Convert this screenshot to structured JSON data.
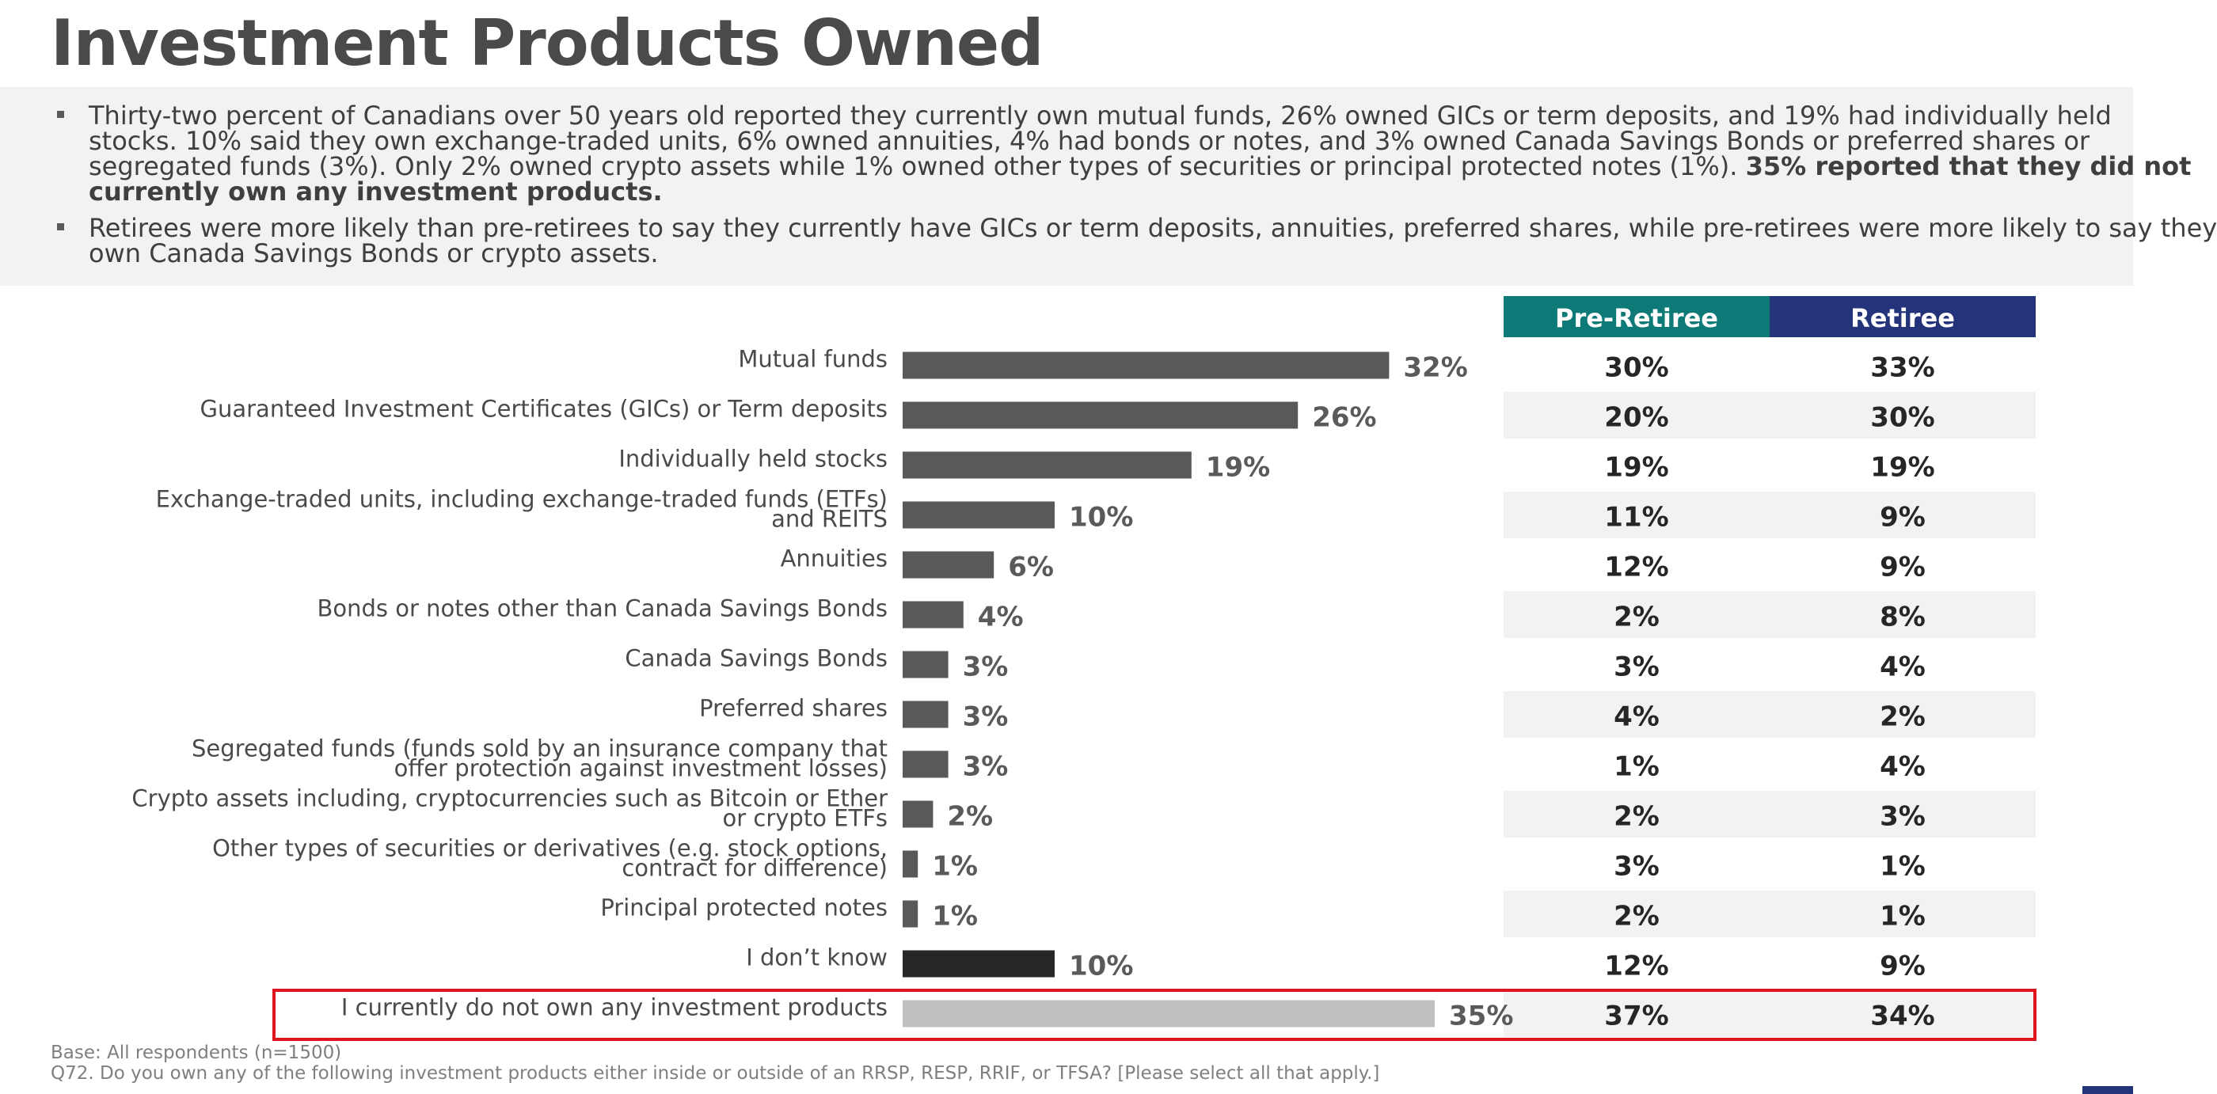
{
  "title": "Investment Products Owned",
  "summary": {
    "bullet1_lines": [
      "Thirty-two percent of Canadians over 50 years old reported they currently own mutual funds, 26% owned GICs or term deposits, and 19% had individually held",
      "stocks. 10% said they own exchange-traded units, 6% owned annuities, 4% had bonds or notes, and 3% owned Canada Savings Bonds or preferred shares or",
      "segregated funds (3%). Only 2% owned crypto assets while 1% owned other types of securities or principal protected notes (1%). "
    ],
    "bullet1_bold": [
      "35% reported that they did not",
      "currently own any investment products."
    ],
    "bullet2_lines": [
      "Retirees were more likely than pre-retirees to say they currently have GICs or term deposits, annuities, preferred shares, while pre-retirees were more likely to say they",
      "own Canada Savings Bonds or crypto assets."
    ]
  },
  "chart_data": {
    "type": "bar",
    "orientation": "horizontal",
    "xlim": [
      0,
      40
    ],
    "categories": [
      [
        "Mutual funds"
      ],
      [
        "Guaranteed Investment Certificates (GICs) or Term deposits"
      ],
      [
        "Individually held stocks"
      ],
      [
        "Exchange-traded units, including exchange-traded funds (ETFs)",
        "and REITS"
      ],
      [
        "Annuities"
      ],
      [
        "Bonds or notes other than Canada Savings Bonds"
      ],
      [
        "Canada Savings Bonds"
      ],
      [
        "Preferred shares"
      ],
      [
        "Segregated funds (funds sold by an insurance company that",
        "offer protection against investment losses)"
      ],
      [
        "Crypto assets including, cryptocurrencies such as Bitcoin or Ether",
        "or crypto ETFs"
      ],
      [
        "Other types of securities or derivatives (e.g. stock options,",
        "contract for difference)"
      ],
      [
        "Principal protected notes"
      ],
      [
        "I don’t know"
      ],
      [
        "I currently do not own any investment products"
      ]
    ],
    "values": [
      32,
      26,
      19,
      10,
      6,
      4,
      3,
      3,
      3,
      2,
      1,
      1,
      10,
      35
    ],
    "value_labels": [
      "32%",
      "26%",
      "19%",
      "10%",
      "6%",
      "4%",
      "3%",
      "3%",
      "3%",
      "2%",
      "1%",
      "1%",
      "10%",
      "35%"
    ],
    "bar_colors": [
      "#595959",
      "#595959",
      "#595959",
      "#595959",
      "#595959",
      "#595959",
      "#595959",
      "#595959",
      "#595959",
      "#595959",
      "#595959",
      "#595959",
      "#262626",
      "#bfbfbf"
    ],
    "highlight_row": 13,
    "table": {
      "columns": [
        {
          "name": "Pre-Retiree",
          "color": "#0e7a77"
        },
        {
          "name": "Retiree",
          "color": "#24347a"
        }
      ],
      "rows": [
        [
          "30%",
          "33%"
        ],
        [
          "20%",
          "30%"
        ],
        [
          "19%",
          "19%"
        ],
        [
          "11%",
          "9%"
        ],
        [
          "12%",
          "9%"
        ],
        [
          "2%",
          "8%"
        ],
        [
          "3%",
          "4%"
        ],
        [
          "4%",
          "2%"
        ],
        [
          "1%",
          "4%"
        ],
        [
          "2%",
          "3%"
        ],
        [
          "3%",
          "1%"
        ],
        [
          "2%",
          "1%"
        ],
        [
          "12%",
          "9%"
        ],
        [
          "37%",
          "34%"
        ]
      ]
    }
  },
  "footer": {
    "base": "Base: All respondents (n=1500)",
    "question": "Q72. Do you own any of the following investment products either inside or outside of an RRSP, RESP, RRIF, or TFSA? [Please select all that apply.]"
  },
  "colors": {
    "highlight_border": "#e0141e",
    "stripe": "#f2f2f2"
  }
}
